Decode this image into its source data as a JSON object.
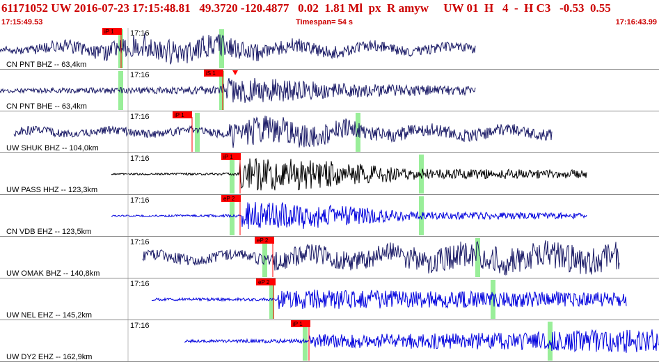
{
  "header": {
    "event_line": "61171052 UW 2016-07-23 17:15:48.81   49.3720 -120.4877   0.02  1.81 Ml  px  R amyw     UW 01  H   4  -  H C3   -0.53  0.55"
  },
  "time_bar": {
    "start": "17:15:49.53",
    "span": "Timespan=  54 s",
    "end": "17:16:43.99"
  },
  "colors": {
    "header_text": "#cc0000",
    "trace_navy": "#1a1a66",
    "trace_black": "#000000",
    "trace_blue": "#0000dd",
    "pick_flag": "#ff0000",
    "phase_marker": "#99ee99",
    "divider": "#888888"
  },
  "traces": [
    {
      "station": "CN PNT BHZ -- 63,4km",
      "time_label": "17:16",
      "pick": "iP 1",
      "color_key": "trace_navy"
    },
    {
      "station": "CN PNT BHE -- 63,4km",
      "time_label": "17:16",
      "pick": "iS 1",
      "color_key": "trace_navy"
    },
    {
      "station": "UW SHUK BHZ -- 104,0km",
      "time_label": "17:16",
      "pick": "iP 1",
      "color_key": "trace_navy"
    },
    {
      "station": "UW PASS HHZ -- 123,3km",
      "time_label": "17:16",
      "pick": "iP 1",
      "color_key": "trace_black"
    },
    {
      "station": "CN VDB EHZ -- 123,5km",
      "time_label": "17:16",
      "pick": "eP 2",
      "color_key": "trace_blue"
    },
    {
      "station": "UW OMAK BHZ -- 140,8km",
      "time_label": "17:16",
      "pick": "eP 2",
      "color_key": "trace_navy"
    },
    {
      "station": "UW NEL EHZ -- 145,2km",
      "time_label": "17:16",
      "pick": "eP 2",
      "color_key": "trace_blue"
    },
    {
      "station": "UW DY2 EHZ -- 162,9km",
      "time_label": "17:16",
      "pick": "iP 1",
      "color_key": "trace_blue"
    }
  ]
}
